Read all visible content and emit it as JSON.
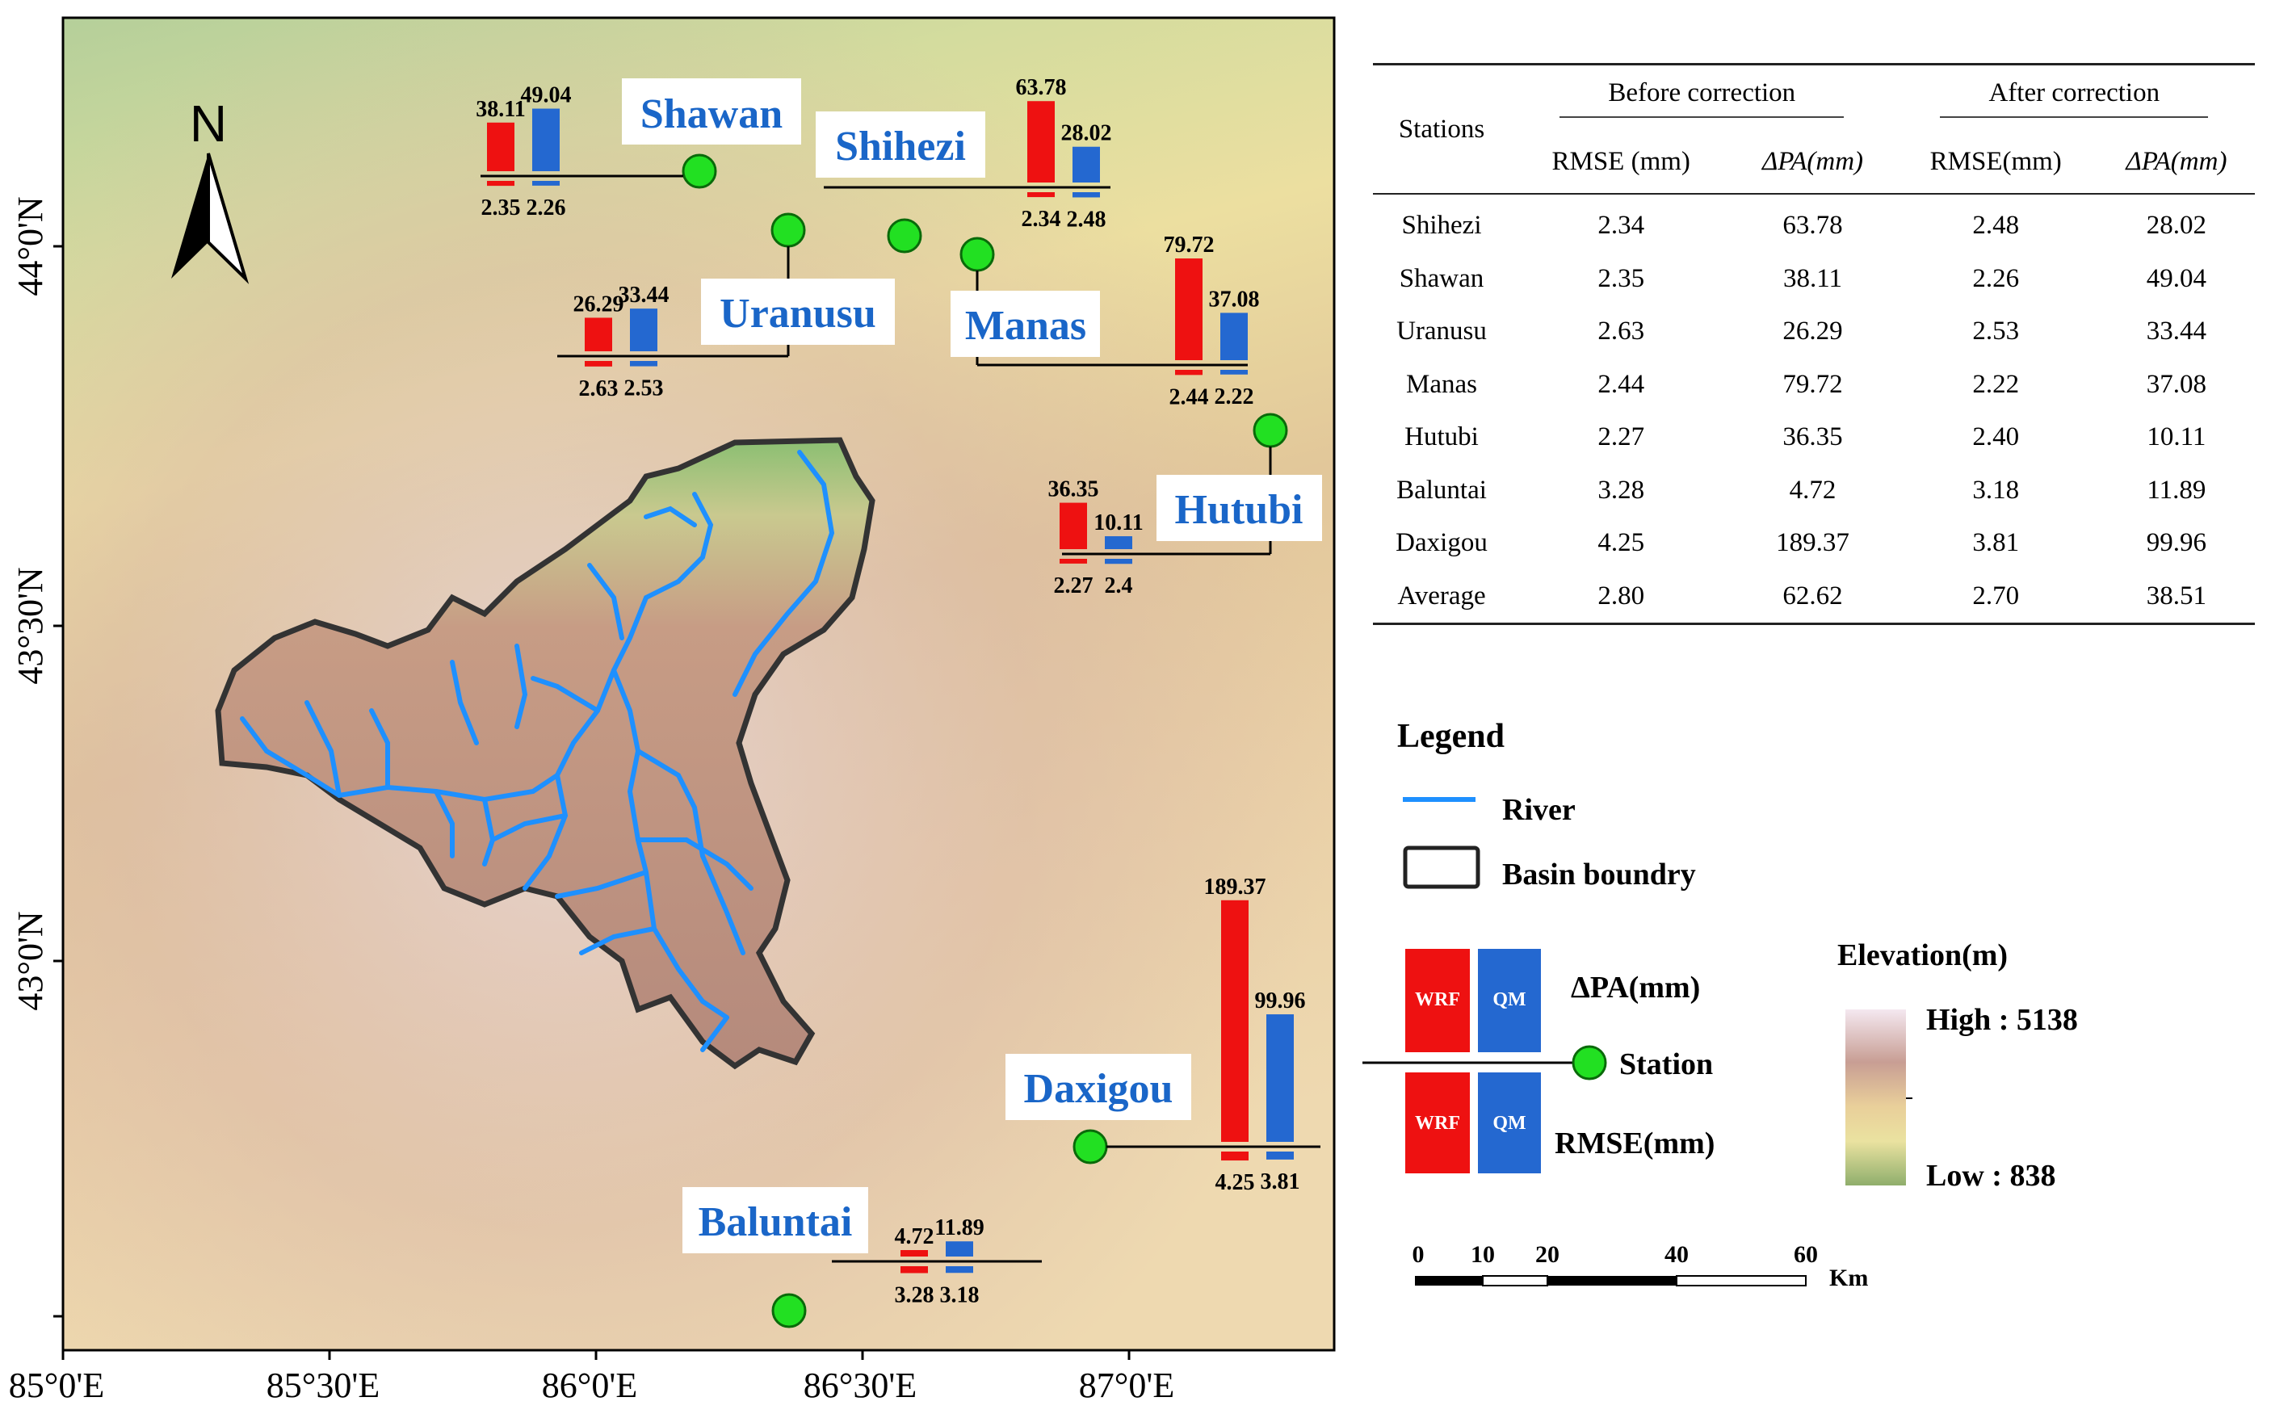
{
  "map": {
    "x_ticks": [
      "85°0'E",
      "85°30'E",
      "86°0'E",
      "86°30'E",
      "87°0'E"
    ],
    "y_ticks": [
      "44°0'N",
      "43°30'N",
      "43°0'N"
    ],
    "north_label": "N",
    "stations": [
      {
        "name": "Shawan",
        "wrf_pa": "38.11",
        "qm_pa": "49.04",
        "wrf_rmse": "2.35",
        "qm_rmse": "2.26"
      },
      {
        "name": "Shihezi",
        "wrf_pa": "63.78",
        "qm_pa": "28.02",
        "wrf_rmse": "2.34",
        "qm_rmse": "2.48"
      },
      {
        "name": "Uranusu",
        "wrf_pa": "26.29",
        "qm_pa": "33.44",
        "wrf_rmse": "2.63",
        "qm_rmse": "2.53"
      },
      {
        "name": "Manas",
        "wrf_pa": "79.72",
        "qm_pa": "37.08",
        "wrf_rmse": "2.44",
        "qm_rmse": "2.22"
      },
      {
        "name": "Hutubi",
        "wrf_pa": "36.35",
        "qm_pa": "10.11",
        "wrf_rmse": "2.27",
        "qm_rmse": "2.4"
      },
      {
        "name": "Daxigou",
        "wrf_pa": "189.37",
        "qm_pa": "99.96",
        "wrf_rmse": "4.25",
        "qm_rmse": "3.81"
      },
      {
        "name": "Baluntai",
        "wrf_pa": "4.72",
        "qm_pa": "11.89",
        "wrf_rmse": "3.28",
        "qm_rmse": "3.18"
      }
    ],
    "colors": {
      "wrf": "#ee1111",
      "qm": "#2468d0",
      "station": "#22e022",
      "river": "#1e90ff",
      "label": "#1a66c8"
    }
  },
  "table": {
    "col_stations": "Stations",
    "group_before": "Before correction",
    "group_after": "After correction",
    "sub_rmse_before": "RMSE (mm)",
    "sub_dpa_before": "ΔPA(mm)",
    "sub_rmse_after": "RMSE(mm)",
    "sub_dpa_after": "ΔPA(mm)",
    "rows": [
      [
        "Shihezi",
        "2.34",
        "63.78",
        "2.48",
        "28.02"
      ],
      [
        "Shawan",
        "2.35",
        "38.11",
        "2.26",
        "49.04"
      ],
      [
        "Uranusu",
        "2.63",
        "26.29",
        "2.53",
        "33.44"
      ],
      [
        "Manas",
        "2.44",
        "79.72",
        "2.22",
        "37.08"
      ],
      [
        "Hutubi",
        "2.27",
        "36.35",
        "2.40",
        "10.11"
      ],
      [
        "Baluntai",
        "3.28",
        "4.72",
        "3.18",
        "11.89"
      ],
      [
        "Daxigou",
        "4.25",
        "189.37",
        "3.81",
        "99.96"
      ],
      [
        "Average",
        "2.80",
        "62.62",
        "2.70",
        "38.51"
      ]
    ]
  },
  "legend": {
    "title": "Legend",
    "river": "River",
    "basin": "Basin boundry",
    "wrf_box": "WRF",
    "qm_box": "QM",
    "dpa_label": "ΔPA(mm)",
    "station_label": "Station",
    "rmse_label": "RMSE(mm)",
    "elev_title": "Elevation(m)",
    "elev_high": "High : 5138",
    "elev_low": "Low : 838"
  },
  "scalebar": {
    "ticks": [
      "0",
      "10",
      "20",
      "40",
      "60"
    ],
    "unit": "Km"
  }
}
